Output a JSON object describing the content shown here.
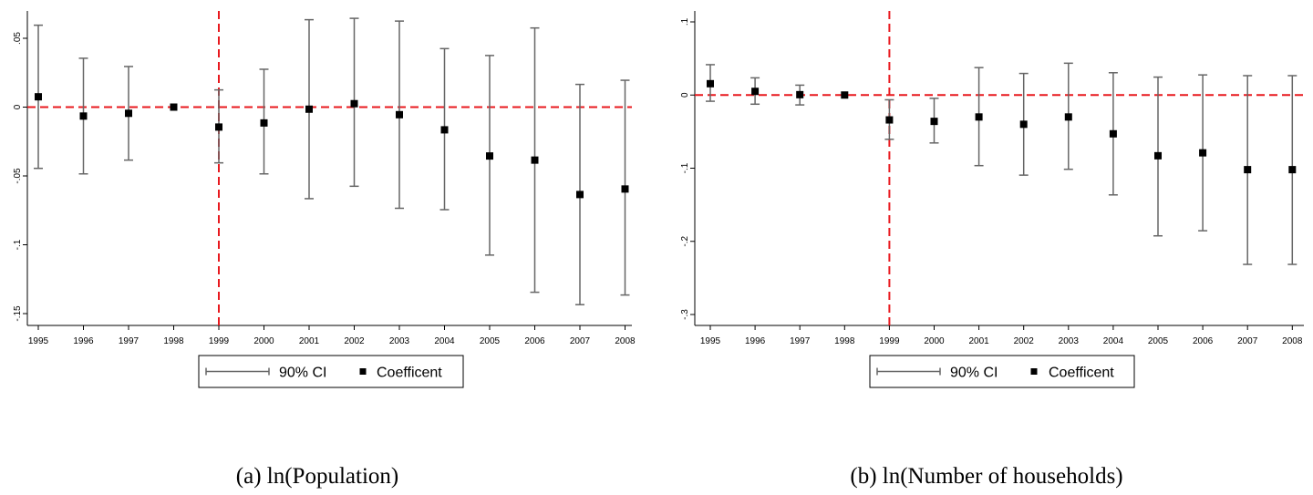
{
  "figure": {
    "captions": [
      "(a) ln(Population)",
      "(b) ln(Number of households)"
    ],
    "legend": {
      "ci_label": "90% CI",
      "coef_label": "Coefficent"
    }
  },
  "chart_data": [
    {
      "type": "scatter",
      "title": "",
      "caption": "(a) ln(Population)",
      "xlabel": "",
      "ylabel": "",
      "categories": [
        "1995",
        "1996",
        "1997",
        "1998",
        "1999",
        "2000",
        "2001",
        "2002",
        "2003",
        "2004",
        "2005",
        "2006",
        "2007",
        "2008"
      ],
      "ylim": [
        -0.15,
        0.07
      ],
      "yticks": [
        0.05,
        0,
        -0.05,
        -0.1,
        -0.15
      ],
      "ytick_labels": [
        ".05",
        "0",
        "-.05",
        "-.1",
        "-.15"
      ],
      "reference_lines": {
        "horizontal_at": 0,
        "vertical_at": "1999",
        "color": "#e8191e",
        "style": "dashed"
      },
      "series": [
        {
          "name": "Coefficent",
          "marker": "square",
          "color": "#000000",
          "values": [
            0.0075,
            -0.0065,
            -0.0045,
            0,
            -0.0145,
            -0.0115,
            -0.0015,
            0.0025,
            -0.0055,
            -0.0165,
            -0.0355,
            -0.0385,
            -0.0635,
            -0.0595
          ]
        },
        {
          "name": "90% CI",
          "color": "#666666",
          "lower": [
            -0.0445,
            -0.0485,
            -0.0385,
            0,
            -0.0405,
            -0.0485,
            -0.0665,
            -0.0575,
            -0.0735,
            -0.0745,
            -0.1075,
            -0.1345,
            -0.1435,
            -0.1365
          ],
          "upper": [
            0.0595,
            0.0355,
            0.0295,
            0,
            0.0125,
            0.0275,
            0.0635,
            0.0645,
            0.0625,
            0.0425,
            0.0375,
            0.0575,
            0.0165,
            0.0195
          ]
        }
      ],
      "grid": false,
      "legend_position": "bottom-center"
    },
    {
      "type": "scatter",
      "title": "",
      "caption": "(b) ln(Number of households)",
      "xlabel": "",
      "ylabel": "",
      "categories": [
        "1995",
        "1996",
        "1997",
        "1998",
        "1999",
        "2000",
        "2001",
        "2002",
        "2003",
        "2004",
        "2005",
        "2006",
        "2007",
        "2008"
      ],
      "ylim": [
        -0.31,
        0.11
      ],
      "yticks": [
        0.1,
        0,
        -0.1,
        -0.2,
        -0.3
      ],
      "ytick_labels": [
        ".1",
        "0",
        "-.1",
        "-.2",
        "-.3"
      ],
      "reference_lines": {
        "horizontal_at": 0,
        "vertical_at": "1999",
        "color": "#e8191e",
        "style": "dashed"
      },
      "series": [
        {
          "name": "Coefficent",
          "marker": "square",
          "color": "#000000",
          "values": [
            0.0155,
            0.005,
            0.0005,
            0,
            -0.034,
            -0.036,
            -0.03,
            -0.04,
            -0.03,
            -0.053,
            -0.083,
            -0.079,
            -0.102,
            -0.102
          ]
        },
        {
          "name": "90% CI",
          "color": "#666666",
          "lower": [
            -0.0085,
            -0.0125,
            -0.0135,
            0,
            -0.0605,
            -0.0655,
            -0.0965,
            -0.1095,
            -0.1015,
            -0.1365,
            -0.1925,
            -0.1855,
            -0.2315,
            -0.2315
          ],
          "upper": [
            0.0415,
            0.0235,
            0.0135,
            0,
            -0.0065,
            -0.0045,
            0.0375,
            0.0295,
            0.0435,
            0.0305,
            0.0245,
            0.0275,
            0.0265,
            0.0265
          ]
        }
      ],
      "grid": false,
      "legend_position": "bottom-center"
    }
  ]
}
